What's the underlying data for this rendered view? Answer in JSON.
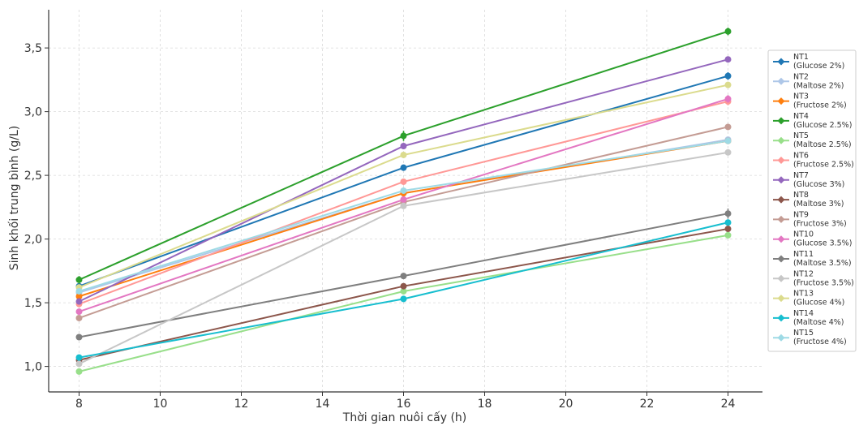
{
  "chart_data": {
    "type": "line",
    "title": "",
    "xlabel": "Thời gian nuôi cấy (h)",
    "ylabel": "Sinh khối trung bình (g/L)",
    "x": [
      8,
      16,
      24
    ],
    "xlim": [
      7.25,
      24.85
    ],
    "ylim": [
      0.8,
      3.8
    ],
    "xticks": [
      "8",
      "10",
      "12",
      "14",
      "16",
      "18",
      "20",
      "22",
      "24"
    ],
    "yticks": [
      "1,0",
      "1,5",
      "2,0",
      "2,5",
      "3,0",
      "3,5"
    ],
    "grid": true,
    "legend_position": "right",
    "series": [
      {
        "name": "NT1",
        "sub": "(Glucose 2%)",
        "color": "#1f77b4",
        "values": [
          1.63,
          2.56,
          3.28
        ],
        "err": [
          0.02,
          0.02,
          0.03
        ]
      },
      {
        "name": "NT2",
        "sub": "(Maltose 2%)",
        "color": "#aec7e8",
        "values": [
          1.58,
          2.36,
          2.78
        ],
        "err": [
          0.02,
          0.02,
          0.02
        ]
      },
      {
        "name": "NT3",
        "sub": "(Fructose 2%)",
        "color": "#ff7f0e",
        "values": [
          1.55,
          2.36,
          2.77
        ],
        "err": [
          0.02,
          0.02,
          0.02
        ]
      },
      {
        "name": "NT4",
        "sub": "(Glucose 2.5%)",
        "color": "#2ca02c",
        "values": [
          1.68,
          2.81,
          3.63
        ],
        "err": [
          0.03,
          0.04,
          0.03
        ]
      },
      {
        "name": "NT5",
        "sub": "(Maltose 2.5%)",
        "color": "#98df8a",
        "values": [
          0.96,
          1.59,
          2.03
        ],
        "err": [
          0.02,
          0.02,
          0.02
        ]
      },
      {
        "name": "NT6",
        "sub": "(Fructose 2.5%)",
        "color": "#ff9896",
        "values": [
          1.49,
          2.45,
          3.08
        ],
        "err": [
          0.02,
          0.02,
          0.03
        ]
      },
      {
        "name": "NT7",
        "sub": "(Glucose 3%)",
        "color": "#9467bd",
        "values": [
          1.51,
          2.73,
          3.41
        ],
        "err": [
          0.02,
          0.02,
          0.02
        ]
      },
      {
        "name": "NT8",
        "sub": "(Maltose 3%)",
        "color": "#8c564b",
        "values": [
          1.05,
          1.63,
          2.08
        ],
        "err": [
          0.02,
          0.02,
          0.02
        ]
      },
      {
        "name": "NT9",
        "sub": "(Fructose 3%)",
        "color": "#c49c94",
        "values": [
          1.38,
          2.29,
          2.88
        ],
        "err": [
          0.02,
          0.02,
          0.02
        ]
      },
      {
        "name": "NT10",
        "sub": "(Glucose 3.5%)",
        "color": "#e377c2",
        "values": [
          1.43,
          2.31,
          3.1
        ],
        "err": [
          0.02,
          0.02,
          0.03
        ]
      },
      {
        "name": "NT11",
        "sub": "(Maltose 3.5%)",
        "color": "#7f7f7f",
        "values": [
          1.23,
          1.71,
          2.2
        ],
        "err": [
          0.02,
          0.02,
          0.04
        ]
      },
      {
        "name": "NT12",
        "sub": "(Fructose 3.5%)",
        "color": "#c7c7c7",
        "values": [
          1.02,
          2.26,
          2.68
        ],
        "err": [
          0.02,
          0.02,
          0.02
        ]
      },
      {
        "name": "NT13",
        "sub": "(Glucose 4%)",
        "color": "#dbdb8d",
        "values": [
          1.62,
          2.66,
          3.21
        ],
        "err": [
          0.02,
          0.02,
          0.02
        ]
      },
      {
        "name": "NT14",
        "sub": "(Maltose 4%)",
        "color": "#17becf",
        "values": [
          1.07,
          1.53,
          2.13
        ],
        "err": [
          0.02,
          0.02,
          0.02
        ]
      },
      {
        "name": "NT15",
        "sub": "(Fructose 4%)",
        "color": "#9edae5",
        "values": [
          1.59,
          2.38,
          2.77
        ],
        "err": [
          0.02,
          0.02,
          0.02
        ]
      }
    ]
  }
}
